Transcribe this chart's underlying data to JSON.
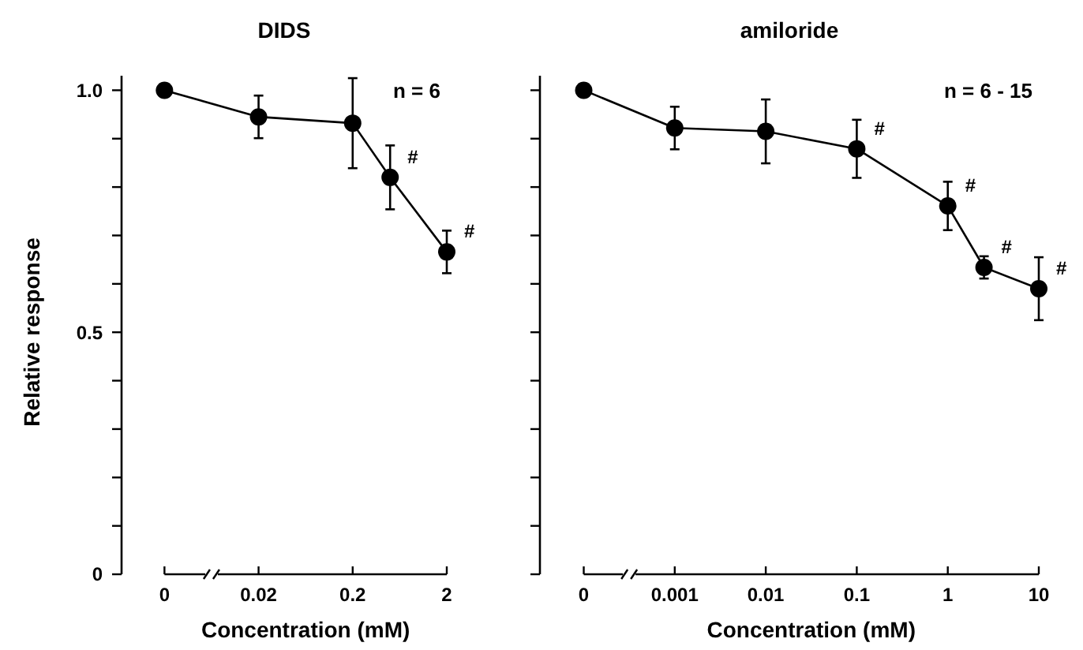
{
  "chart_data": [
    {
      "type": "line",
      "title": "DIDS",
      "xlabel": "Concentration (mM)",
      "ylabel": "Relative response",
      "log": "x",
      "xlim": [
        0.0007,
        2
      ],
      "xticks": [
        {
          "value": 0.002,
          "label": "0"
        },
        0.02,
        0.2,
        2
      ],
      "ylim": [
        0,
        1.03
      ],
      "yticks": [
        0,
        {
          "value": 0.1,
          "label": null
        },
        {
          "value": 0.2,
          "label": null
        },
        {
          "value": 0.3,
          "label": null
        },
        {
          "value": 0.4,
          "label": null
        },
        0.5,
        {
          "value": 0.6,
          "label": null
        },
        {
          "value": 0.7,
          "label": null
        },
        {
          "value": 0.8,
          "label": null
        },
        {
          "value": 0.9,
          "label": null
        },
        {
          "value": 1,
          "label": "1.0"
        }
      ],
      "marker": "circle",
      "line_style": "solid",
      "grid": false,
      "series": [
        {
          "color": "#000000",
          "x": [
            0.002,
            0.02,
            0.2,
            0.5,
            2
          ],
          "values": [
            1.0,
            0.945,
            0.932,
            0.82,
            0.666
          ],
          "errors": [
            null,
            0.044,
            0.093,
            0.066,
            0.044
          ]
        }
      ],
      "annotations": [
        "n = 6",
        {
          "text": "#",
          "x": 0.5,
          "y": 0.82
        },
        {
          "text": "#",
          "x": 2,
          "y": 0.666
        }
      ]
    },
    {
      "type": "line",
      "title": "amiloride",
      "xlabel": "Concentration (mM)",
      "log": "x",
      "xlim": [
        3.3e-05,
        10
      ],
      "xticks": [
        {
          "value": 0.0001,
          "label": "0"
        },
        0.001,
        0.01,
        0.1,
        1,
        10
      ],
      "ylim": [
        0,
        1.03
      ],
      "yticks": [
        {
          "value": 0,
          "label": null
        },
        {
          "value": 0.1,
          "label": null
        },
        {
          "value": 0.2,
          "label": null
        },
        {
          "value": 0.3,
          "label": null
        },
        {
          "value": 0.4,
          "label": null
        },
        {
          "value": 0.5,
          "label": null
        },
        {
          "value": 0.6,
          "label": null
        },
        {
          "value": 0.7,
          "label": null
        },
        {
          "value": 0.8,
          "label": null
        },
        {
          "value": 0.9,
          "label": null
        },
        {
          "value": 1,
          "label": null
        }
      ],
      "tick_labels": "x",
      "marker": "circle",
      "line_style": "solid",
      "grid": false,
      "series": [
        {
          "color": "#000000",
          "x": [
            0.0001,
            0.001,
            0.01,
            0.1,
            1,
            2.5,
            10
          ],
          "values": [
            1.0,
            0.922,
            0.915,
            0.879,
            0.761,
            0.634,
            0.59
          ],
          "errors": [
            null,
            0.044,
            0.066,
            0.06,
            0.05,
            0.023,
            0.065
          ]
        }
      ],
      "annotations": [
        "n = 6 - 15",
        {
          "text": "#",
          "x": 0.1,
          "y": 0.879
        },
        {
          "text": "#",
          "x": 1,
          "y": 0.761
        },
        {
          "text": "#",
          "x": 2.5,
          "y": 0.634
        },
        {
          "text": "#",
          "x": 10,
          "y": 0.59
        }
      ]
    }
  ]
}
